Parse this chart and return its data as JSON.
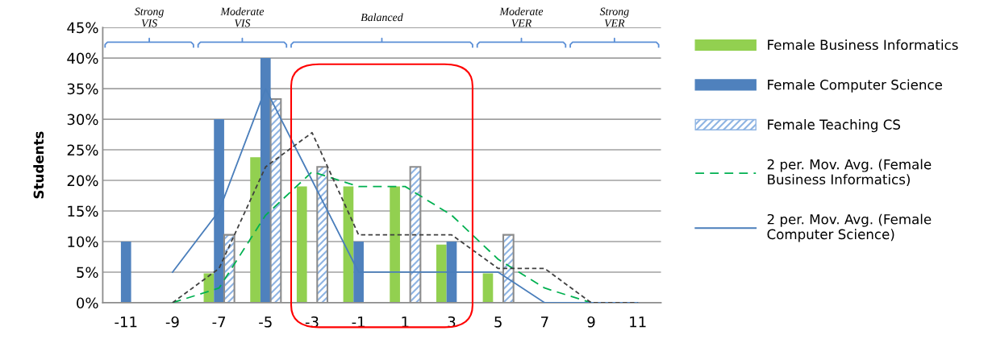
{
  "chart_data": {
    "type": "bar",
    "ylabel": "Students",
    "categories": [
      "-11",
      "-9",
      "-7",
      "-5",
      "-3",
      "-1",
      "1",
      "3",
      "5",
      "7",
      "9",
      "11"
    ],
    "series": [
      {
        "name": "Female Business Informatics",
        "color": "#92d050",
        "values": [
          0,
          0,
          4.8,
          23.8,
          19,
          19,
          19,
          9.5,
          4.8,
          0,
          0,
          0
        ]
      },
      {
        "name": "Female Computer Science",
        "color": "#4f81bd",
        "values": [
          10,
          0,
          30,
          40,
          0,
          10,
          0,
          10,
          0,
          0,
          0,
          0
        ]
      },
      {
        "name": "Female Teaching CS",
        "color": "#8eb4e3",
        "values": [
          0,
          0,
          11.1,
          33.3,
          22.2,
          0,
          22.2,
          0,
          11.1,
          0,
          0,
          0
        ]
      },
      {
        "name": "2 per. Mov. Avg. (Female\nBusiness Informatics)",
        "type": "line",
        "line_style": "dashed",
        "color": "#00b050",
        "values": [
          null,
          0,
          2.4,
          14.3,
          21.4,
          19,
          19,
          14.3,
          7.1,
          2.4,
          0,
          0
        ]
      },
      {
        "name": "2 per. Mov. Avg. (Female\nComputer Science)",
        "type": "line",
        "line_style": "solid",
        "color": "#4a7ebb",
        "values": [
          null,
          5,
          15,
          35,
          20,
          5,
          5,
          5,
          5,
          0,
          0,
          0
        ]
      },
      {
        "type": "line",
        "line_style": "dotted",
        "color": "#404040",
        "values": [
          null,
          0,
          5.6,
          22.2,
          27.8,
          11.1,
          11.1,
          11.1,
          5.6,
          5.6,
          0,
          0
        ]
      }
    ],
    "ylim": [
      0,
      45
    ],
    "yticks": [
      {
        "value": 0,
        "label": "0%"
      },
      {
        "value": 5,
        "label": "5%"
      },
      {
        "value": 10,
        "label": "10%"
      },
      {
        "value": 15,
        "label": "15%"
      },
      {
        "value": 20,
        "label": "20%"
      },
      {
        "value": 25,
        "label": "25%"
      },
      {
        "value": 30,
        "label": "30%"
      },
      {
        "value": 35,
        "label": "35%"
      },
      {
        "value": 40,
        "label": "40%"
      },
      {
        "value": 45,
        "label": "45%"
      }
    ],
    "grid": "y",
    "legend": "right",
    "annotations": [
      "Strong\nVIS",
      "Moderate\nVIS",
      "Balanced",
      "Moderate\nVER",
      "Strong\nVER"
    ]
  }
}
